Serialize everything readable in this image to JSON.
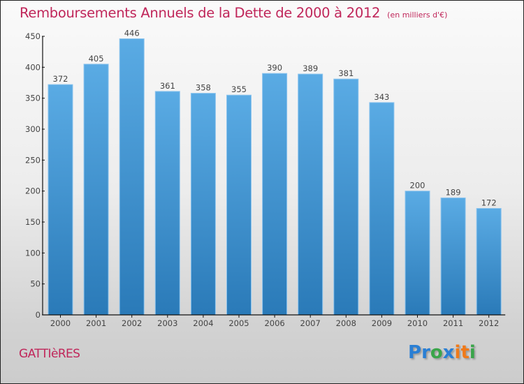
{
  "chart_data": {
    "type": "bar",
    "title": "Remboursements Annuels de la Dette de 2000 à 2012",
    "subtitle": "(en milliers d'€)",
    "xlabel": "",
    "ylabel": "",
    "categories": [
      "2000",
      "2001",
      "2002",
      "2003",
      "2004",
      "2005",
      "2006",
      "2007",
      "2008",
      "2009",
      "2010",
      "2011",
      "2012"
    ],
    "values": [
      372,
      405,
      446,
      361,
      358,
      355,
      390,
      389,
      381,
      343,
      200,
      189,
      172
    ],
    "value_labels": [
      "372",
      "405",
      "446",
      "361",
      "358",
      "355",
      "390",
      "389",
      "381",
      "343",
      "200",
      "189",
      "172"
    ],
    "ylim": [
      0,
      450
    ],
    "yticks": [
      0,
      50,
      100,
      150,
      200,
      250,
      300,
      350,
      400,
      450
    ],
    "ytick_labels": [
      "0",
      "50",
      "100",
      "150",
      "200",
      "250",
      "300",
      "350",
      "400",
      "450"
    ],
    "grid": false,
    "legend": null,
    "colors": {
      "bar_top": "#5aabe4",
      "bar_bottom": "#2a7ab8",
      "bar_edge": "#8cc4ee",
      "title": "#c0265a",
      "axis": "#111111",
      "label": "#444444"
    }
  },
  "footer": {
    "city": "GATTIèRES",
    "logo": {
      "text": "Proxiti",
      "letters": [
        {
          "ch": "P",
          "color": "#2a7fd4"
        },
        {
          "ch": "r",
          "color": "#2a7fd4"
        },
        {
          "ch": "o",
          "color": "#3aa54a"
        },
        {
          "ch": "x",
          "color": "#2a7fd4"
        },
        {
          "ch": "i",
          "color": "#f07a1a"
        },
        {
          "ch": "t",
          "color": "#f07a1a"
        },
        {
          "ch": "i",
          "color": "#3aa54a"
        }
      ]
    }
  }
}
